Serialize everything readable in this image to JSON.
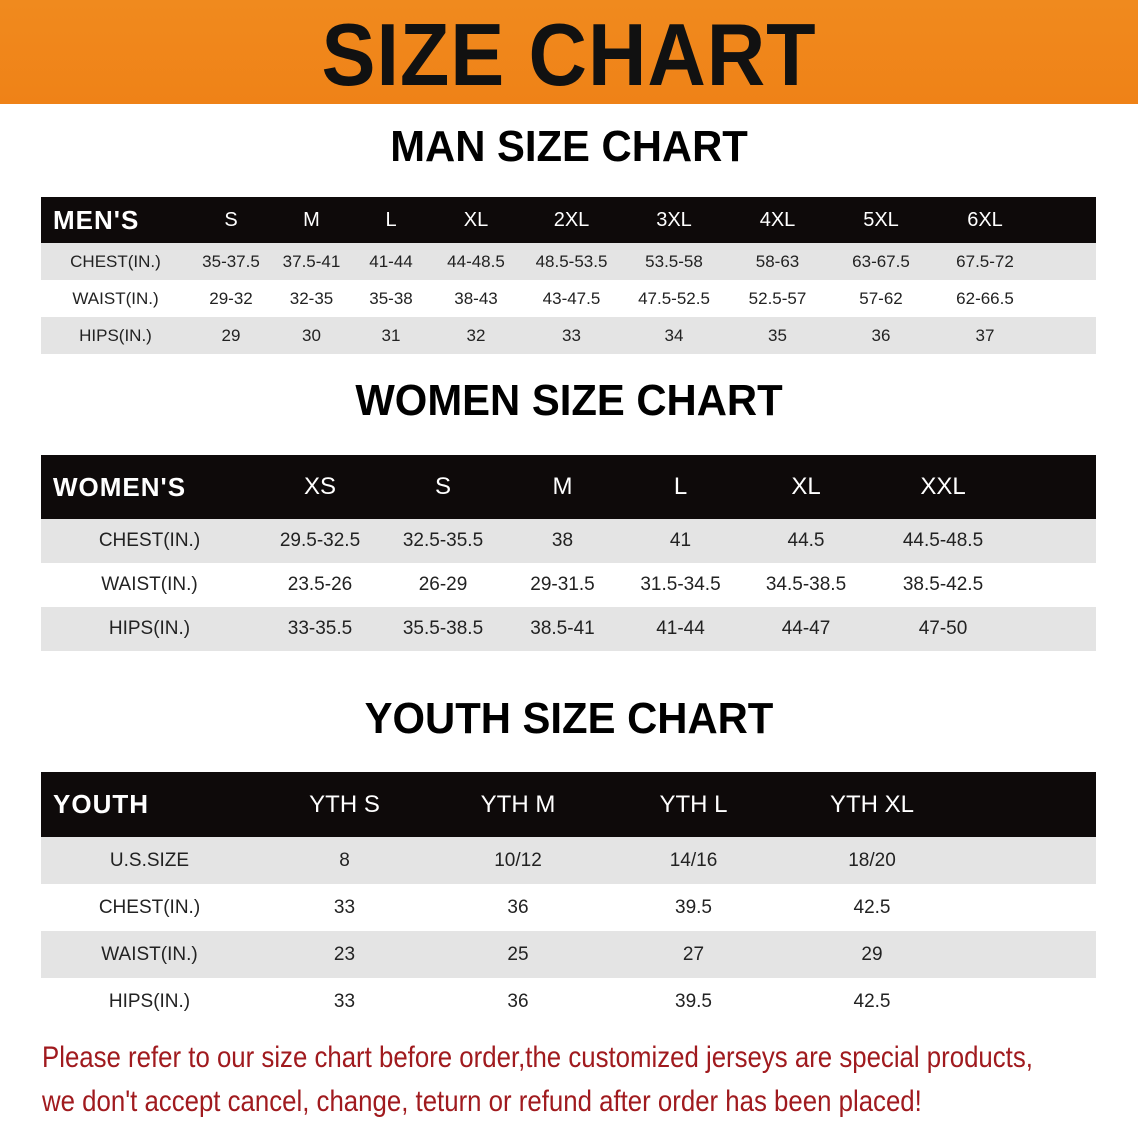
{
  "banner_title": "SIZE CHART",
  "men": {
    "title": "MAN SIZE CHART",
    "header": [
      "MEN'S",
      "S",
      "M",
      "L",
      "XL",
      "2XL",
      "3XL",
      "4XL",
      "5XL",
      "6XL"
    ],
    "rows": [
      [
        "CHEST(IN.)",
        "35-37.5",
        "37.5-41",
        "41-44",
        "44-48.5",
        "48.5-53.5",
        "53.5-58",
        "58-63",
        "63-67.5",
        "67.5-72"
      ],
      [
        "WAIST(IN.)",
        "29-32",
        "32-35",
        "35-38",
        "38-43",
        "43-47.5",
        "47.5-52.5",
        "52.5-57",
        "57-62",
        "62-66.5"
      ],
      [
        "HIPS(IN.)",
        "29",
        "30",
        "31",
        "32",
        "33",
        "34",
        "35",
        "36",
        "37"
      ]
    ]
  },
  "women": {
    "title": "WOMEN SIZE CHART",
    "header": [
      "WOMEN'S",
      "XS",
      "S",
      "M",
      "L",
      "XL",
      "XXL"
    ],
    "rows": [
      [
        "CHEST(IN.)",
        "29.5-32.5",
        "32.5-35.5",
        "38",
        "41",
        "44.5",
        "44.5-48.5"
      ],
      [
        "WAIST(IN.)",
        "23.5-26",
        "26-29",
        "29-31.5",
        "31.5-34.5",
        "34.5-38.5",
        "38.5-42.5"
      ],
      [
        "HIPS(IN.)",
        "33-35.5",
        "35.5-38.5",
        "38.5-41",
        "41-44",
        "44-47",
        "47-50"
      ]
    ]
  },
  "youth": {
    "title": "YOUTH SIZE CHART",
    "header": [
      "YOUTH",
      "YTH S",
      "YTH M",
      "YTH L",
      "YTH XL"
    ],
    "rows": [
      [
        "U.S.SIZE",
        "8",
        "10/12",
        "14/16",
        "18/20"
      ],
      [
        "CHEST(IN.)",
        "33",
        "36",
        "39.5",
        "42.5"
      ],
      [
        "WAIST(IN.)",
        "23",
        "25",
        "27",
        "29"
      ],
      [
        "HIPS(IN.)",
        "33",
        "36",
        "39.5",
        "42.5"
      ]
    ]
  },
  "notice": {
    "line1": "Please refer to our size chart before order,the customized jerseys are special products,",
    "line2": "we don't accept cancel, change, teturn or refund after order has been placed!"
  },
  "colors": {
    "banner": "#f08a1e",
    "header_bg": "#0e0a0a",
    "row_alt": "#e4e4e4",
    "notice": "#a01a1e"
  }
}
